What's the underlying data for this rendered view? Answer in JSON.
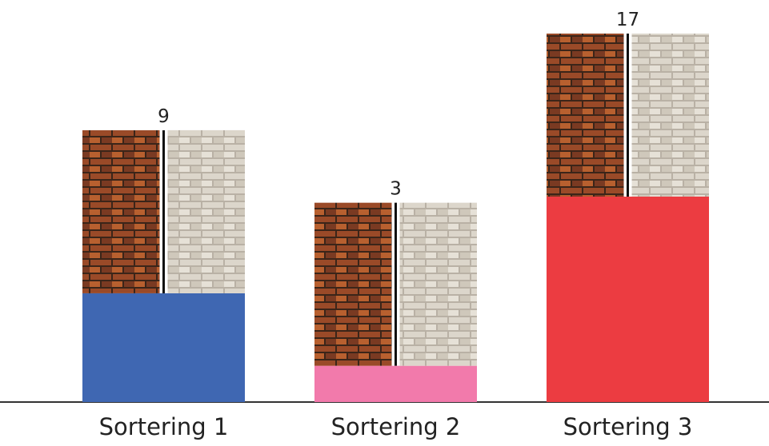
{
  "chart_data": {
    "type": "bar",
    "categories": [
      "Sortering 1",
      "Sortering 2",
      "Sortering 3"
    ],
    "values": [
      9,
      3,
      17
    ],
    "colors": [
      "#3f67b2",
      "#f27aab",
      "#ec3c41"
    ]
  }
}
